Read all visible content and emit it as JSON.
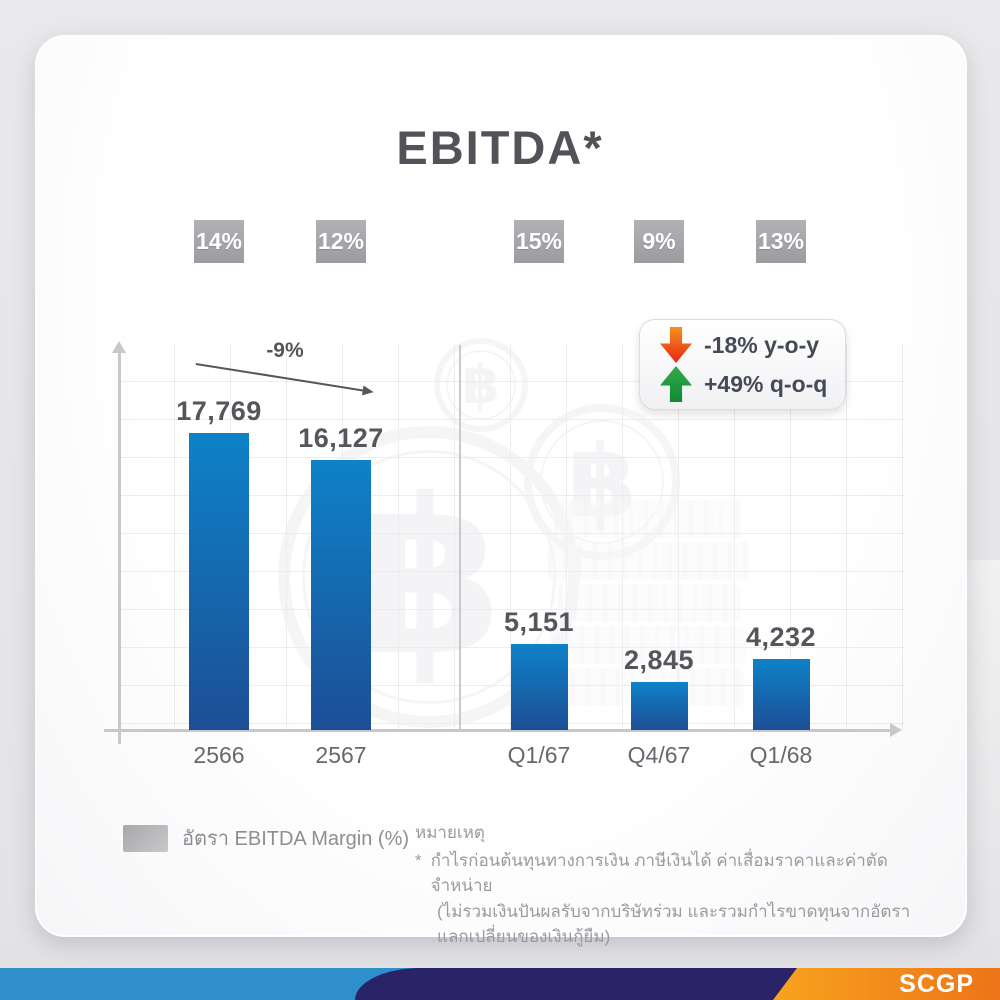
{
  "title": "EBITDA*",
  "chart_data": {
    "type": "bar",
    "title": "EBITDA*",
    "categories": [
      "2566",
      "2567",
      "Q1/67",
      "Q4/67",
      "Q1/68"
    ],
    "values": [
      17769,
      16127,
      5151,
      2845,
      4232
    ],
    "value_labels": [
      "17,769",
      "16,127",
      "5,151",
      "2,845",
      "4,232"
    ],
    "groups": [
      "annual",
      "annual",
      "quarterly",
      "quarterly",
      "quarterly"
    ],
    "series": [
      {
        "name": "EBITDA",
        "values": [
          17769,
          16127,
          5151,
          2845,
          4232
        ]
      },
      {
        "name": "อัตรา EBITDA Margin (%)",
        "labels": [
          "14%",
          "12%",
          "15%",
          "9%",
          "13%"
        ]
      }
    ],
    "annotations": {
      "annual_change": "-9%",
      "yoy_change": "-18% y-o-y",
      "qoq_change": "+49% q-o-q"
    },
    "xlabel": "",
    "ylabel": "",
    "grid": true,
    "legend_position": "bottom-left",
    "bar_color_top": "#0e82c8",
    "bar_color_bottom": "#1d4e95"
  },
  "stat_box": {
    "rows": [
      {
        "icon": "arrow-down",
        "direction": "down",
        "text": "-18% y-o-y",
        "color": "#e52713"
      },
      {
        "icon": "arrow-up",
        "direction": "up",
        "text": "+49% q-o-q",
        "color": "#0f8a33"
      }
    ]
  },
  "legend": {
    "swatch_color": "#b0b0b4",
    "label": "อัตรา EBITDA Margin (%)"
  },
  "notes": {
    "heading": "หมายเหตุ",
    "star": "*",
    "line1": "กำไรก่อนต้นทุนทางการเงิน ภาษีเงินได้ ค่าเสื่อมราคาและค่าตัดจำหน่าย",
    "line2": "(ไม่รวมเงินปันผลรับจากบริษัทร่วม และรวมกำไรขาดทุนจากอัตราแลกเปลี่ยนของเงินกู้ยืม)"
  },
  "footer": {
    "logo": "SCGP",
    "bar_colors": {
      "blue": "#2e8fcb",
      "navy": "#2b2368",
      "orange_start": "#f8a31e",
      "orange_end": "#ed7418"
    }
  },
  "watermarks": {
    "currency_symbol": "฿"
  }
}
